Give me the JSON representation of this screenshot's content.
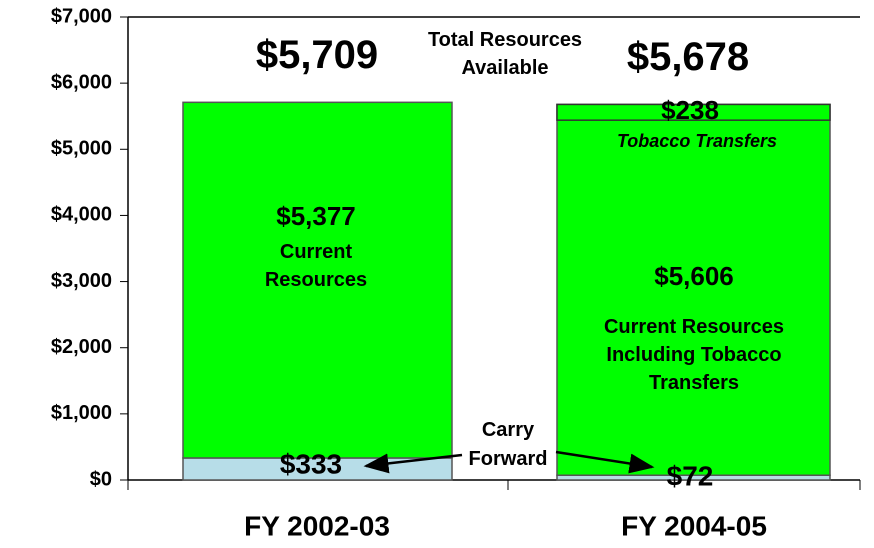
{
  "chart_data": {
    "type": "bar",
    "categories": [
      "FY 2002-03",
      "FY 2004-05"
    ],
    "series": [
      {
        "name": "Carry Forward",
        "color": "#b7dde8",
        "values": [
          333,
          72
        ],
        "value_labels": [
          "$333",
          "$72"
        ]
      },
      {
        "labels": [
          "Current Resources",
          "Current Resources Including Tobacco Transfers"
        ],
        "color": "#00ff00",
        "values": [
          5377,
          5606
        ],
        "value_labels": [
          "$5,377",
          "$5,606"
        ]
      }
    ],
    "overlay": {
      "name": "Tobacco Transfers",
      "color": "#00ff00",
      "values": [
        null,
        238
      ],
      "value_labels": [
        null,
        "$238"
      ]
    },
    "totals": {
      "label": "Total Resources Available",
      "values": [
        5709,
        5678
      ],
      "value_labels": [
        "$5,709",
        "$5,678"
      ]
    },
    "ylim": [
      0,
      7000
    ],
    "yticks": [
      {
        "value": 0,
        "label": "$0"
      },
      {
        "value": 1000,
        "label": "$1,000"
      },
      {
        "value": 2000,
        "label": "$2,000"
      },
      {
        "value": 3000,
        "label": "$3,000"
      },
      {
        "value": 4000,
        "label": "$4,000"
      },
      {
        "value": 5000,
        "label": "$5,000"
      },
      {
        "value": 6000,
        "label": "$6,000"
      },
      {
        "value": 7000,
        "label": "$7,000"
      }
    ],
    "grid": false
  }
}
